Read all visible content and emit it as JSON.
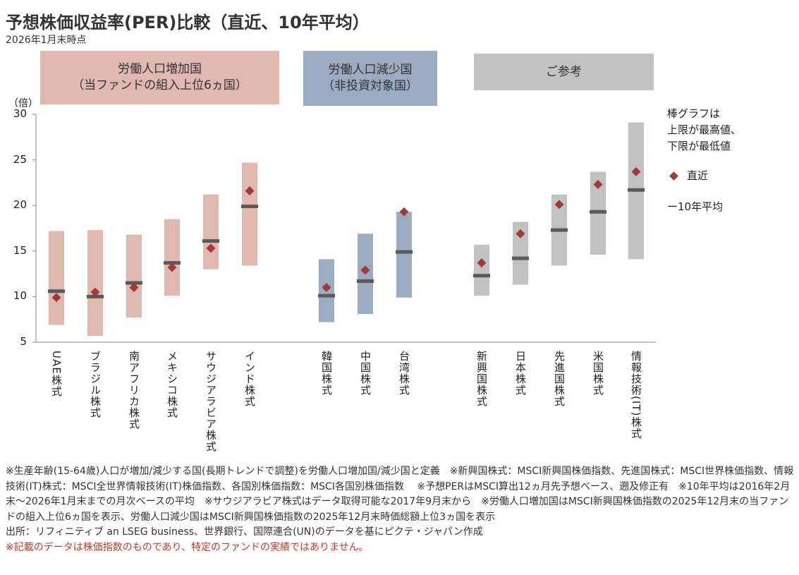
{
  "title": "予想株価収益率(PER)比較（直近、10年平均）",
  "subtitle": "2026年1月末時点",
  "groups": [
    {
      "line1": "労働人口増加国",
      "line2": "（当ファンドの組入上位6ヵ国）",
      "color": "#dfb8b0"
    },
    {
      "line1": "労働人口減少国",
      "line2": "（非投資対象国）",
      "color": "#9aabc2"
    },
    {
      "line1": "ご参考",
      "line2": "",
      "color": "#c2c2c2"
    }
  ],
  "legend": {
    "l1": "棒グラフは",
    "l2": "上限が最高値、",
    "l3": "下限が最低値",
    "recent": "直近",
    "avg": "ー10年平均"
  },
  "colors": {
    "marker": "#a33a3a",
    "avg": "#5a5a5a"
  },
  "chart_data": {
    "type": "bar",
    "ylabel": "（倍）",
    "ylim": [
      5,
      30
    ],
    "yticks": [
      5,
      10,
      15,
      20,
      25,
      30
    ],
    "categories": [
      "UAE株式",
      "ブラジル株式",
      "南アフリカ株式",
      "メキシコ株式",
      "サウジアラビア株式",
      "インド株式",
      "韓国株式",
      "中国株式",
      "台湾株式",
      "新興国株式",
      "日本株式",
      "先進国株式",
      "米国株式",
      "情報技術(IT)株式"
    ],
    "group_index": [
      0,
      0,
      0,
      0,
      0,
      0,
      1,
      1,
      1,
      2,
      2,
      2,
      2,
      2
    ],
    "series": [
      {
        "name": "最高値",
        "values": [
          17.2,
          17.3,
          16.8,
          18.5,
          21.2,
          24.7,
          14.1,
          16.9,
          19.3,
          15.7,
          18.2,
          21.2,
          23.7,
          29.1
        ]
      },
      {
        "name": "最低値",
        "values": [
          6.9,
          5.7,
          7.7,
          10.1,
          13.0,
          13.4,
          7.2,
          8.1,
          9.9,
          10.1,
          11.3,
          13.4,
          14.6,
          14.1
        ]
      },
      {
        "name": "10年平均",
        "values": [
          10.6,
          10.0,
          11.5,
          13.7,
          16.1,
          19.9,
          10.1,
          11.7,
          14.9,
          12.3,
          14.2,
          17.3,
          19.3,
          21.7
        ]
      },
      {
        "name": "直近",
        "values": [
          9.9,
          10.5,
          11.0,
          13.2,
          15.3,
          21.6,
          11.0,
          12.9,
          19.3,
          13.7,
          16.9,
          20.1,
          22.3,
          23.7
        ]
      }
    ]
  },
  "notes": [
    "※生産年齢(15-64歳)人口が増加/減少する国(長期トレンドで調整)を労働人口増加国/減少国と定義　※新興国株式：MSCI新興国株価指数、先進国株式：MSCI世界株価指数、情報技術(IT)株式：MSCI全世界情報技術(IT)株価指数、各国別株価指数：MSCI各国別株価指数　 ※予想PERはMSCI算出12ヵ月先予想ベース、遡及修正有　※10年平均は2016年2月末～2026年1月末までの月次ベースの平均　※サウジアラビア株式はデータ取得可能な2017年9月末から　※労働人口増加国はMSCI新興国株価指数の2025年12月末の当ファンドの組入上位6ヵ国を表示、労働人口減少国はMSCI新興国株価指数の2025年12月末時価総額上位3ヵ国を表示",
    "出所：リフィニティブ an LSEG business、世界銀行、国際連合(UN)のデータを基にピクテ・ジャパン作成"
  ],
  "warning": "※記載のデータは株価指数のものであり、特定のファンドの実績ではありません。"
}
